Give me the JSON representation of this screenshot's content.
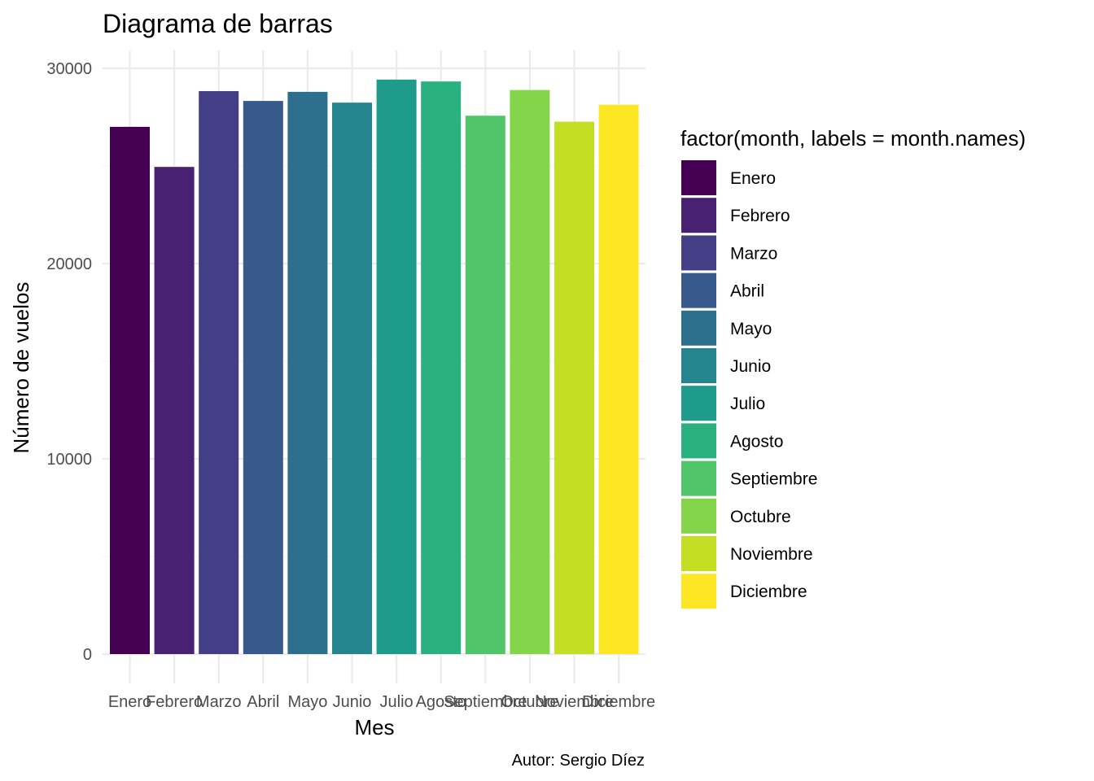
{
  "chart_data": {
    "type": "bar",
    "title": "Diagrama de barras",
    "xlabel": "Mes",
    "ylabel": "Número de vuelos",
    "caption": "Autor: Sergio Díez",
    "legend_title": "factor(month, labels = month.names)",
    "legend_position": "right",
    "grid": true,
    "ylim": [
      0,
      30000
    ],
    "yticks": [
      0,
      10000,
      20000,
      30000
    ],
    "categories": [
      "Enero",
      "Febrero",
      "Marzo",
      "Abril",
      "Mayo",
      "Junio",
      "Julio",
      "Agosto",
      "Septiembre",
      "Octubre",
      "Noviembre",
      "Diciembre"
    ],
    "values": [
      27004,
      24951,
      28834,
      28330,
      28796,
      28243,
      29425,
      29327,
      27574,
      28889,
      27268,
      28135
    ],
    "colors": [
      "#440154",
      "#482173",
      "#433E85",
      "#38598C",
      "#2D708E",
      "#25858E",
      "#1E9B8A",
      "#2BB07F",
      "#51C56A",
      "#85D54A",
      "#C2DF23",
      "#FDE725"
    ]
  }
}
